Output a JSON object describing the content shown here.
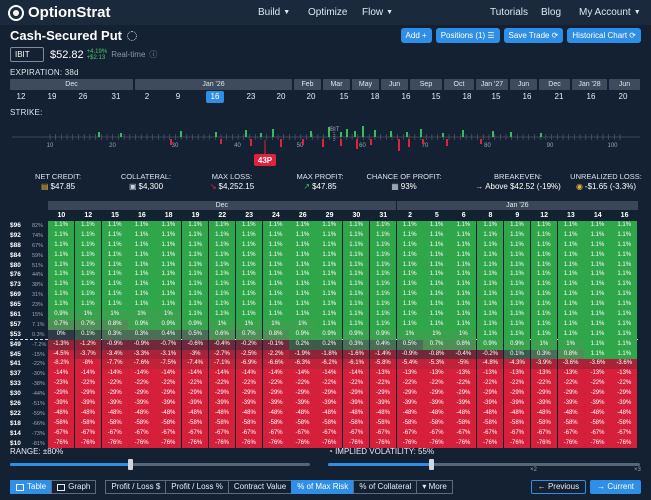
{
  "header": {
    "logo": "OptionStrat",
    "nav": [
      {
        "label": "Build",
        "caret": true
      },
      {
        "label": "Optimize",
        "caret": false
      },
      {
        "label": "Flow",
        "caret": true
      },
      {
        "label": "Tutorials",
        "caret": false
      },
      {
        "label": "Blog",
        "caret": false
      },
      {
        "label": "My Account",
        "caret": true
      }
    ]
  },
  "strategy": {
    "title": "Cash-Secured Put",
    "buttons": [
      "Add +",
      "Positions (1) ☰",
      "Save Trade ⟳",
      "Historical Chart ⟳"
    ]
  },
  "ticker": {
    "symbol": "IBIT",
    "price": "$52.82",
    "change_pct": "+4.19%",
    "change_abs": "+$2.13",
    "realtime": "Real-time"
  },
  "expiration": {
    "label": "EXPIRATION: 38d",
    "months": [
      "Dec",
      "Jan '26",
      "Feb",
      "Mar",
      "May",
      "Jun",
      "Sep",
      "Oct",
      "Jan '27",
      "Jun",
      "Dec",
      "Jan '28",
      "Jun"
    ],
    "days": [
      "12",
      "19",
      "26",
      "31",
      "2",
      "9",
      "16",
      "23",
      "20",
      "20",
      "15",
      "18",
      "16",
      "15",
      "18",
      "15",
      "16",
      "21",
      "16",
      "20"
    ],
    "selected_day_index": 6
  },
  "strike": {
    "label": "STRIKE:",
    "ticks": [
      "10",
      "20",
      "30",
      "40",
      "50",
      "60",
      "70",
      "80",
      "90",
      "100"
    ],
    "underlying": "IBIT",
    "position_label": "43P",
    "colors": {
      "green": "#33c05a",
      "red": "#e0223f"
    }
  },
  "stats": [
    {
      "label": "NET CREDIT:",
      "value": "$47.85",
      "icon": "money-icon"
    },
    {
      "label": "COLLATERAL:",
      "value": "$4,300",
      "icon": "wallet-icon"
    },
    {
      "label": "MAX LOSS:",
      "value": "$4,252.15",
      "icon": "down-arrow-icon"
    },
    {
      "label": "MAX PROFIT:",
      "value": "$47.85",
      "icon": "up-arrow-icon"
    },
    {
      "label": "CHANCE OF PROFIT:",
      "value": "93%",
      "icon": "dice-icon"
    },
    {
      "label": "BREAKEVEN:",
      "value": "Above $42.52 (-19%)",
      "icon": "arrow-right-icon"
    },
    {
      "label": "UNREALIZED LOSS:",
      "value": "-$1.65 (-3.3%)",
      "icon": "coins-icon"
    }
  ],
  "grid": {
    "months": [
      "Dec",
      "Jan '26"
    ],
    "days": [
      "10",
      "12",
      "15",
      "16",
      "18",
      "19",
      "22",
      "23",
      "24",
      "26",
      "29",
      "30",
      "31",
      "2",
      "5",
      "6",
      "8",
      "9",
      "12",
      "13",
      "14",
      "16"
    ],
    "rows": [
      {
        "strike": "$96",
        "pct": "82%",
        "cells": [
          "1.1%",
          "1.1%",
          "1.1%",
          "1.1%",
          "1.1%",
          "1.1%",
          "1.1%",
          "1.1%",
          "1.1%",
          "1.1%",
          "1.1%",
          "1.1%",
          "1.1%",
          "1.1%",
          "1.1%",
          "1.1%",
          "1.1%",
          "1.1%",
          "1.1%",
          "1.1%",
          "1.1%",
          "1.1%"
        ]
      },
      {
        "strike": "$92",
        "pct": "74%",
        "cells": [
          "1.1%",
          "1.1%",
          "1.1%",
          "1.1%",
          "1.1%",
          "1.1%",
          "1.1%",
          "1.1%",
          "1.1%",
          "1.1%",
          "1.1%",
          "1.1%",
          "1.1%",
          "1.1%",
          "1.1%",
          "1.1%",
          "1.1%",
          "1.1%",
          "1.1%",
          "1.1%",
          "1.1%",
          "1.1%"
        ]
      },
      {
        "strike": "$88",
        "pct": "67%",
        "cells": [
          "1.1%",
          "1.1%",
          "1.1%",
          "1.1%",
          "1.1%",
          "1.1%",
          "1.1%",
          "1.1%",
          "1.1%",
          "1.1%",
          "1.1%",
          "1.1%",
          "1.1%",
          "1.1%",
          "1.1%",
          "1.1%",
          "1.1%",
          "1.1%",
          "1.1%",
          "1.1%",
          "1.1%",
          "1.1%"
        ]
      },
      {
        "strike": "$84",
        "pct": "59%",
        "cells": [
          "1.1%",
          "1.1%",
          "1.1%",
          "1.1%",
          "1.1%",
          "1.1%",
          "1.1%",
          "1.1%",
          "1.1%",
          "1.1%",
          "1.1%",
          "1.1%",
          "1.1%",
          "1.1%",
          "1.1%",
          "1.1%",
          "1.1%",
          "1.1%",
          "1.1%",
          "1.1%",
          "1.1%",
          "1.1%"
        ]
      },
      {
        "strike": "$80",
        "pct": "51%",
        "cells": [
          "1.1%",
          "1.1%",
          "1.1%",
          "1.1%",
          "1.1%",
          "1.1%",
          "1.1%",
          "1.1%",
          "1.1%",
          "1.1%",
          "1.1%",
          "1.1%",
          "1.1%",
          "1.1%",
          "1.1%",
          "1.1%",
          "1.1%",
          "1.1%",
          "1.1%",
          "1.1%",
          "1.1%",
          "1.1%"
        ]
      },
      {
        "strike": "$76",
        "pct": "44%",
        "cells": [
          "1.1%",
          "1.1%",
          "1.1%",
          "1.1%",
          "1.1%",
          "1.1%",
          "1.1%",
          "1.1%",
          "1.1%",
          "1.1%",
          "1.1%",
          "1.1%",
          "1.1%",
          "1.1%",
          "1.1%",
          "1.1%",
          "1.1%",
          "1.1%",
          "1.1%",
          "1.1%",
          "1.1%",
          "1.1%"
        ]
      },
      {
        "strike": "$73",
        "pct": "38%",
        "cells": [
          "1.1%",
          "1.1%",
          "1.1%",
          "1.1%",
          "1.1%",
          "1.1%",
          "1.1%",
          "1.1%",
          "1.1%",
          "1.1%",
          "1.1%",
          "1.1%",
          "1.1%",
          "1.1%",
          "1.1%",
          "1.1%",
          "1.1%",
          "1.1%",
          "1.1%",
          "1.1%",
          "1.1%",
          "1.1%"
        ]
      },
      {
        "strike": "$69",
        "pct": "31%",
        "cells": [
          "1.1%",
          "1.1%",
          "1.1%",
          "1.1%",
          "1.1%",
          "1.1%",
          "1.1%",
          "1.1%",
          "1.1%",
          "1.1%",
          "1.1%",
          "1.1%",
          "1.1%",
          "1.1%",
          "1.1%",
          "1.1%",
          "1.1%",
          "1.1%",
          "1.1%",
          "1.1%",
          "1.1%",
          "1.1%"
        ]
      },
      {
        "strike": "$65",
        "pct": "23%",
        "cells": [
          "1.1%",
          "1.1%",
          "1.1%",
          "1.1%",
          "1.1%",
          "1.1%",
          "1.1%",
          "1.1%",
          "1.1%",
          "1.1%",
          "1.1%",
          "1.1%",
          "1.1%",
          "1.1%",
          "1.1%",
          "1.1%",
          "1.1%",
          "1.1%",
          "1.1%",
          "1.1%",
          "1.1%",
          "1.1%"
        ]
      },
      {
        "strike": "$61",
        "pct": "15%",
        "cells": [
          "0.9%",
          "1%",
          "1%",
          "1%",
          "1%",
          "1.1%",
          "1.1%",
          "1.1%",
          "1.1%",
          "1.1%",
          "1.1%",
          "1.1%",
          "1.1%",
          "1.1%",
          "1.1%",
          "1.1%",
          "1.1%",
          "1.1%",
          "1.1%",
          "1.1%",
          "1.1%",
          "1.1%"
        ]
      },
      {
        "strike": "$57",
        "pct": "7.1%",
        "cells": [
          "0.7%",
          "0.7%",
          "0.8%",
          "0.9%",
          "0.9%",
          "0.9%",
          "1%",
          "1%",
          "1%",
          "1%",
          "1.1%",
          "1.1%",
          "1.1%",
          "1.1%",
          "1.1%",
          "1.1%",
          "1.1%",
          "1.1%",
          "1.1%",
          "1.1%",
          "1.1%",
          "1.1%"
        ]
      },
      {
        "strike": "$53",
        "pct": "0.3%",
        "cells": [
          "0%",
          "0.1%",
          "0.3%",
          "0.3%",
          "0.4%",
          "0.5%",
          "0.6%",
          "0.7%",
          "0.8%",
          "0.9%",
          "0.9%",
          "0.9%",
          "0.9%",
          "1%",
          "1%",
          "1%",
          "1.1%",
          "1.1%",
          "1.1%",
          "1.1%",
          "1.1%",
          "1.1%"
        ]
      },
      {
        "strike": "$49",
        "pct": "-7.2%",
        "cells": [
          "-1.3%",
          "-1.2%",
          "-0.9%",
          "-0.9%",
          "-0.7%",
          "-0.6%",
          "-0.4%",
          "-0.2%",
          "-0.1%",
          "0.2%",
          "0.2%",
          "0.3%",
          "0.4%",
          "0.5%",
          "0.7%",
          "0.8%",
          "0.9%",
          "0.9%",
          "1%",
          "1%",
          "1.1%",
          "1.1%"
        ]
      },
      {
        "strike": "$45",
        "pct": "-15%",
        "cells": [
          "-4.5%",
          "-3.7%",
          "-3.4%",
          "-3.3%",
          "-3.1%",
          "-3%",
          "-2.7%",
          "-2.5%",
          "-2.2%",
          "-1.9%",
          "-1.8%",
          "-1.6%",
          "-1.4%",
          "-0.9%",
          "-0.8%",
          "-0.4%",
          "-0.2%",
          "0.1%",
          "0.3%",
          "0.8%",
          "1.1%",
          "1.1%"
        ]
      },
      {
        "strike": "$41",
        "pct": "-22%",
        "cells": [
          "-8.2%",
          "-8%",
          "-7.7%",
          "-7.6%",
          "-7.5%",
          "-7.4%",
          "-7.1%",
          "-6.9%",
          "-6.6%",
          "-6.3%",
          "-6.2%",
          "-6.1%",
          "-5.8%",
          "-5.4%",
          "-5.3%",
          "-5%",
          "-4.8%",
          "-4.3%",
          "-3.9%",
          "-3.6%",
          "-3.6%",
          "-3.6%"
        ]
      },
      {
        "strike": "$37",
        "pct": "-30%",
        "cells": [
          "-14%",
          "-14%",
          "-14%",
          "-14%",
          "-14%",
          "-14%",
          "-14%",
          "-14%",
          "-14%",
          "-14%",
          "-14%",
          "-14%",
          "-13%",
          "-13%",
          "-13%",
          "-13%",
          "-13%",
          "-13%",
          "-13%",
          "-13%",
          "-13%",
          "-13%"
        ]
      },
      {
        "strike": "$33",
        "pct": "-38%",
        "cells": [
          "-23%",
          "-22%",
          "-22%",
          "-22%",
          "-22%",
          "-22%",
          "-22%",
          "-22%",
          "-22%",
          "-22%",
          "-22%",
          "-22%",
          "-22%",
          "-22%",
          "-22%",
          "-22%",
          "-22%",
          "-22%",
          "-22%",
          "-22%",
          "-22%",
          "-22%"
        ]
      },
      {
        "strike": "$30",
        "pct": "-44%",
        "cells": [
          "-29%",
          "-29%",
          "-29%",
          "-29%",
          "-29%",
          "-29%",
          "-29%",
          "-29%",
          "-29%",
          "-29%",
          "-29%",
          "-29%",
          "-29%",
          "-29%",
          "-29%",
          "-29%",
          "-29%",
          "-29%",
          "-29%",
          "-29%",
          "-29%",
          "-29%"
        ]
      },
      {
        "strike": "$26",
        "pct": "-51%",
        "cells": [
          "-39%",
          "-39%",
          "-39%",
          "-39%",
          "-39%",
          "-39%",
          "-39%",
          "-39%",
          "-39%",
          "-39%",
          "-39%",
          "-39%",
          "-39%",
          "-39%",
          "-39%",
          "-39%",
          "-39%",
          "-39%",
          "-39%",
          "-39%",
          "-39%",
          "-39%"
        ]
      },
      {
        "strike": "$22",
        "pct": "-59%",
        "cells": [
          "-48%",
          "-48%",
          "-48%",
          "-48%",
          "-48%",
          "-48%",
          "-48%",
          "-48%",
          "-48%",
          "-48%",
          "-48%",
          "-48%",
          "-48%",
          "-48%",
          "-48%",
          "-48%",
          "-48%",
          "-48%",
          "-48%",
          "-48%",
          "-48%",
          "-48%"
        ]
      },
      {
        "strike": "$18",
        "pct": "-66%",
        "cells": [
          "-58%",
          "-58%",
          "-58%",
          "-58%",
          "-58%",
          "-58%",
          "-58%",
          "-58%",
          "-58%",
          "-58%",
          "-58%",
          "-58%",
          "-58%",
          "-58%",
          "-58%",
          "-58%",
          "-58%",
          "-58%",
          "-58%",
          "-58%",
          "-58%",
          "-58%"
        ]
      },
      {
        "strike": "$14",
        "pct": "-73%",
        "cells": [
          "-67%",
          "-67%",
          "-67%",
          "-67%",
          "-67%",
          "-67%",
          "-67%",
          "-67%",
          "-67%",
          "-67%",
          "-67%",
          "-67%",
          "-67%",
          "-67%",
          "-67%",
          "-67%",
          "-67%",
          "-67%",
          "-67%",
          "-67%",
          "-67%",
          "-67%"
        ]
      },
      {
        "strike": "$10",
        "pct": "-81%",
        "cells": [
          "-76%",
          "-76%",
          "-76%",
          "-76%",
          "-76%",
          "-76%",
          "-76%",
          "-76%",
          "-76%",
          "-76%",
          "-76%",
          "-76%",
          "-76%",
          "-76%",
          "-76%",
          "-76%",
          "-76%",
          "-76%",
          "-76%",
          "-76%",
          "-76%",
          "-76%"
        ]
      }
    ]
  },
  "controls": {
    "range_label": "RANGE: ±80%",
    "range_fraction": 0.4,
    "iv_label": "IMPLIED VOLATILITY: 55%",
    "iv_fraction": 0.33,
    "iv_marks": [
      "×2",
      "×3"
    ]
  },
  "tabs": [
    {
      "label": "Table",
      "active": true,
      "icon": "table-icon"
    },
    {
      "label": "Graph",
      "active": false,
      "icon": "graph-icon"
    },
    {
      "label": "Profit / Loss $",
      "active": false
    },
    {
      "label": "Profit / Loss %",
      "active": false
    },
    {
      "label": "Contract Value",
      "active": false
    },
    {
      "label": "% of Max Risk",
      "active": true
    },
    {
      "label": "% of Collateral",
      "active": false
    },
    {
      "label": "▾ More",
      "active": false
    }
  ],
  "navigation": {
    "previous": "← Previous",
    "current": "→ Current"
  }
}
